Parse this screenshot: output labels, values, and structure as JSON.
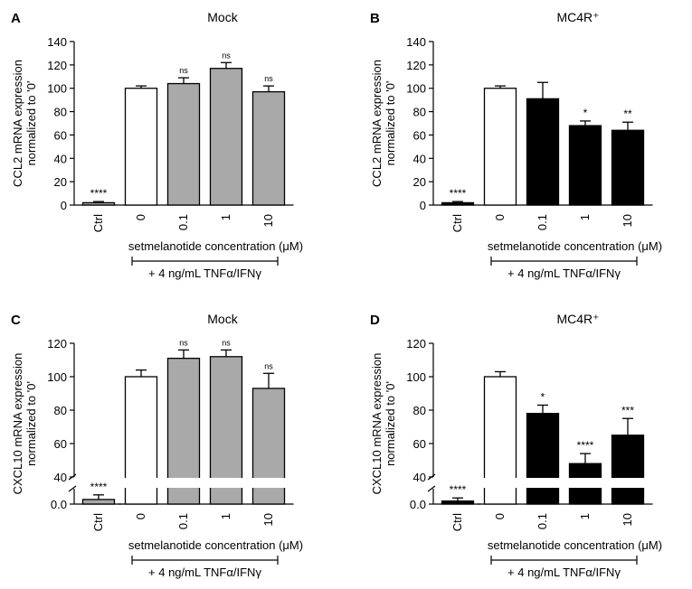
{
  "figure": {
    "common": {
      "xlabel": "setmelanotide concentration (μM)",
      "treatment_label": "+ 4 ng/mL TNFα/IFNγ"
    }
  },
  "colors": {
    "mock_bar": "#a9a9a9",
    "mc4r_bar": "#000000",
    "reference_bar": "#ffffff",
    "axis": "#000000"
  },
  "chart_data": [
    {
      "panel": "A",
      "type": "bar",
      "title": "Mock",
      "ylabel": "CCL2 mRNA expression normalized to '0'",
      "ylabel_lines": [
        "CCL2 mRNA expression",
        "normalized to '0'"
      ],
      "categories": [
        "Ctrl",
        "0",
        "0.1",
        "1",
        "10"
      ],
      "values": [
        2,
        100,
        104,
        117,
        97
      ],
      "errors": [
        1,
        2,
        5,
        5,
        5
      ],
      "fills": [
        "mock",
        "white",
        "mock",
        "mock",
        "mock"
      ],
      "significance": [
        "****",
        "",
        "ns",
        "ns",
        "ns"
      ],
      "ylim": [
        0,
        140
      ],
      "yticks": [
        0,
        20,
        40,
        60,
        80,
        100,
        120,
        140
      ],
      "broken_axis": false,
      "xlabel": "setmelanotide concentration (μM)",
      "treatment": "+ 4 ng/mL TNFα/IFNγ"
    },
    {
      "panel": "B",
      "type": "bar",
      "title": "MC4R⁺",
      "ylabel": "CCL2 mRNA expression normalized to '0'",
      "ylabel_lines": [
        "CCL2 mRNA expression",
        "normalized to '0'"
      ],
      "categories": [
        "Ctrl",
        "0",
        "0.1",
        "1",
        "10"
      ],
      "values": [
        2,
        100,
        91,
        68,
        64
      ],
      "errors": [
        1,
        2,
        14,
        4,
        7
      ],
      "fills": [
        "mc4r",
        "white",
        "mc4r",
        "mc4r",
        "mc4r"
      ],
      "significance": [
        "****",
        "",
        "",
        "*",
        "**"
      ],
      "ylim": [
        0,
        140
      ],
      "yticks": [
        0,
        20,
        40,
        60,
        80,
        100,
        120,
        140
      ],
      "broken_axis": false,
      "xlabel": "setmelanotide concentration (μM)",
      "treatment": "+ 4 ng/mL TNFα/IFNγ"
    },
    {
      "panel": "C",
      "type": "bar",
      "title": "Mock",
      "ylabel": "CXCL10 mRNA expression normalized to '0'",
      "ylabel_lines": [
        "CXCL10 mRNA expression",
        "normalized to '0'"
      ],
      "categories": [
        "Ctrl",
        "0",
        "0.1",
        "1",
        "10"
      ],
      "values": [
        3,
        100,
        111,
        112,
        93
      ],
      "errors": [
        3,
        4,
        5,
        4,
        9
      ],
      "fills": [
        "mock",
        "white",
        "mock",
        "mock",
        "mock"
      ],
      "significance": [
        "****",
        "",
        "ns",
        "ns",
        "ns"
      ],
      "ylim": [
        0,
        120
      ],
      "yticks": [
        0.0,
        40,
        60,
        80,
        100,
        120
      ],
      "ytick_labels": [
        "0.0",
        "40",
        "60",
        "80",
        "100",
        "120"
      ],
      "broken_axis": true,
      "break_range": [
        10,
        30
      ],
      "xlabel": "setmelanotide concentration (μM)",
      "treatment": "+ 4 ng/mL TNFα/IFNγ"
    },
    {
      "panel": "D",
      "type": "bar",
      "title": "MC4R⁺",
      "ylabel": "CXCL10 mRNA expression normalized to '0'",
      "ylabel_lines": [
        "CXCL10 mRNA expression",
        "normalized to '0'"
      ],
      "categories": [
        "Ctrl",
        "0",
        "0.1",
        "1",
        "10"
      ],
      "values": [
        2,
        100,
        78,
        48,
        65
      ],
      "errors": [
        2,
        3,
        5,
        6,
        10
      ],
      "fills": [
        "mc4r",
        "white",
        "mc4r",
        "mc4r",
        "mc4r"
      ],
      "significance": [
        "****",
        "",
        "*",
        "****",
        "***"
      ],
      "ylim": [
        0,
        120
      ],
      "yticks": [
        0.0,
        40,
        60,
        80,
        100,
        120
      ],
      "ytick_labels": [
        "0.0",
        "40",
        "60",
        "80",
        "100",
        "120"
      ],
      "broken_axis": true,
      "break_range": [
        10,
        30
      ],
      "xlabel": "setmelanotide concentration (μM)",
      "treatment": "+ 4 ng/mL TNFα/IFNγ"
    }
  ]
}
